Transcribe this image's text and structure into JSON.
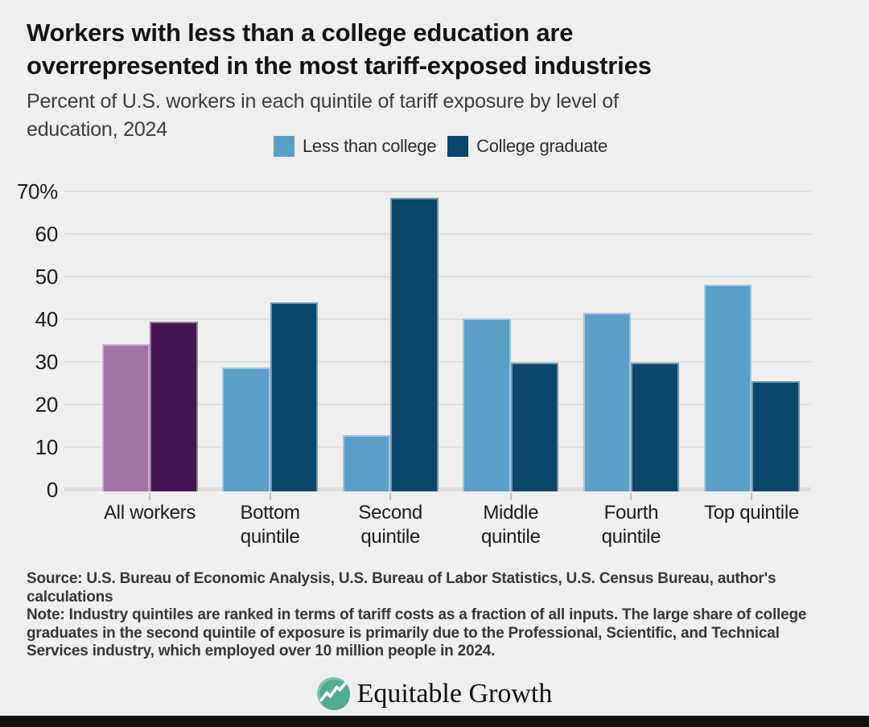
{
  "page": {
    "background": "#efefef",
    "bottom_bar_color": "#111111"
  },
  "header": {
    "title_lines": [
      "Workers with less than a college education are",
      "overrepresented in the most tariff-exposed industries"
    ],
    "subtitle_lines": [
      "Percent of U.S. workers in each quintile of tariff exposure by level of",
      "education, 2024"
    ]
  },
  "legend": {
    "items": [
      {
        "label": "Less than college",
        "color": "#5b9ec7"
      },
      {
        "label": "College graduate",
        "color": "#0b466b"
      }
    ]
  },
  "chart_data": {
    "type": "bar",
    "title": "Percent of U.S. workers in each quintile of tariff exposure by level of education, 2024",
    "categories": [
      "All workers",
      "Bottom quintile",
      "Second quintile",
      "Middle quintile",
      "Fourth quintile",
      "Top quintile"
    ],
    "category_display_lines": [
      [
        "All workers"
      ],
      [
        "Bottom",
        "quintile"
      ],
      [
        "Second",
        "quintile"
      ],
      [
        "Middle",
        "quintile"
      ],
      [
        "Fourth",
        "quintile"
      ],
      [
        "Top quintile"
      ]
    ],
    "series": [
      {
        "name": "Less than college",
        "values": [
          34.5,
          29,
          13.3,
          40.5,
          41.9,
          48.4
        ]
      },
      {
        "name": "College graduate",
        "values": [
          39.9,
          44.3,
          68.9,
          30.1,
          30.1,
          25.9
        ]
      }
    ],
    "unit": "percent",
    "ylim": [
      0,
      70
    ],
    "yticks": [
      0,
      10,
      20,
      30,
      40,
      50,
      60,
      70
    ],
    "ytick_labels": [
      "0",
      "10",
      "20",
      "30",
      "40",
      "50",
      "60",
      "70%"
    ],
    "grid": "horizontal",
    "legend_position": "top",
    "highlight_category": "All workers",
    "colors": {
      "less_than_college": "#5b9ec7",
      "college_graduate": "#0b466b",
      "all_workers_less_than_college": "#a470a8",
      "all_workers_college_graduate": "#46124f",
      "gridline": "#e0e0e0",
      "baseline": "#dcdcdc"
    }
  },
  "source_note": {
    "source_lines": [
      "Source: U.S. Bureau of Economic Analysis, U.S. Bureau of Labor Statistics, U.S. Census Bureau, author's",
      "calculations"
    ],
    "note_lines": [
      "Note: Industry quintiles are ranked in terms of tariff costs as a fraction of all inputs. The large share of college",
      "graduates in the second quintile of exposure is primarily due to the Professional, Scientific, and Technical",
      "Services industry, which employed over 10 million people in 2024."
    ]
  },
  "footer": {
    "brand": "Equitable Growth",
    "logo_colors": {
      "circle": "#52ab92",
      "circle_light": "#7fc3ad",
      "line": "#ffffff"
    }
  }
}
